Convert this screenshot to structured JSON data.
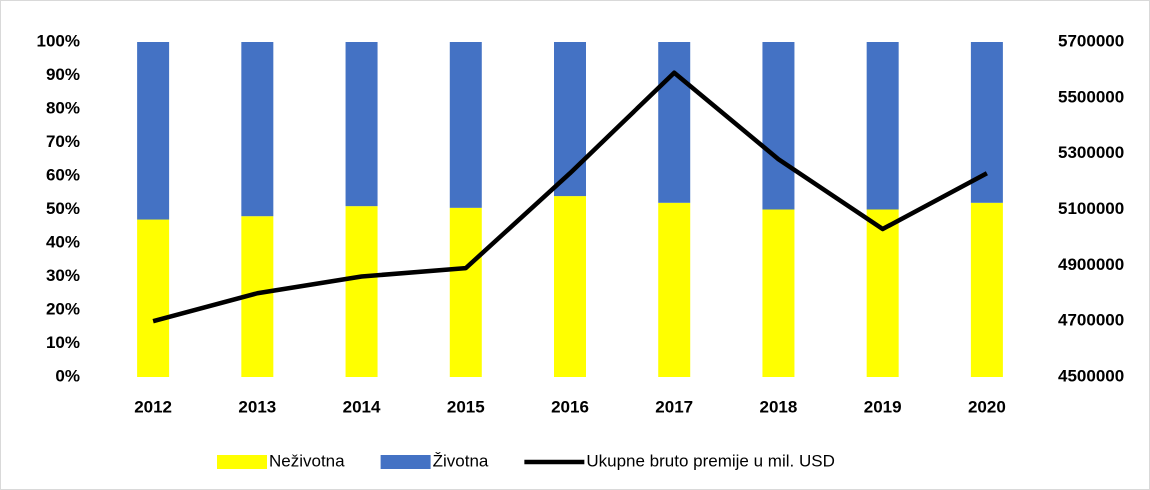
{
  "chart_data": {
    "type": "bar",
    "categories": [
      "2012",
      "2013",
      "2014",
      "2015",
      "2016",
      "2017",
      "2018",
      "2019",
      "2020"
    ],
    "series": [
      {
        "name": "Neživotna",
        "color": "#ffff00",
        "values": [
          47,
          48,
          51,
          50.5,
          54,
          52,
          50,
          50,
          52
        ]
      },
      {
        "name": "Životna",
        "color": "#4472c4",
        "values": [
          53,
          52,
          49,
          49.5,
          46,
          48,
          50,
          50,
          48
        ]
      },
      {
        "name": "Ukupne bruto premije u mil. USD",
        "color": "#000000",
        "type": "line",
        "axis": "y2",
        "values": [
          4700000,
          4800000,
          4860000,
          4890000,
          5230000,
          5590000,
          5280000,
          5030000,
          5230000
        ]
      }
    ],
    "stacked": true,
    "ylim": [
      0,
      100
    ],
    "yticks": [
      {
        "value": 0,
        "label": "0%"
      },
      {
        "value": 10,
        "label": "10%"
      },
      {
        "value": 20,
        "label": "20%"
      },
      {
        "value": 30,
        "label": "30%"
      },
      {
        "value": 40,
        "label": "40%"
      },
      {
        "value": 50,
        "label": "50%"
      },
      {
        "value": 60,
        "label": "60%"
      },
      {
        "value": 70,
        "label": "70%"
      },
      {
        "value": 80,
        "label": "80%"
      },
      {
        "value": 90,
        "label": "90%"
      },
      {
        "value": 100,
        "label": "100%"
      }
    ],
    "y2lim": [
      4500000,
      5700000
    ],
    "y2ticks": [
      4500000,
      4700000,
      4900000,
      5100000,
      5300000,
      5500000,
      5700000
    ],
    "grid": false,
    "legend": "bottom"
  }
}
